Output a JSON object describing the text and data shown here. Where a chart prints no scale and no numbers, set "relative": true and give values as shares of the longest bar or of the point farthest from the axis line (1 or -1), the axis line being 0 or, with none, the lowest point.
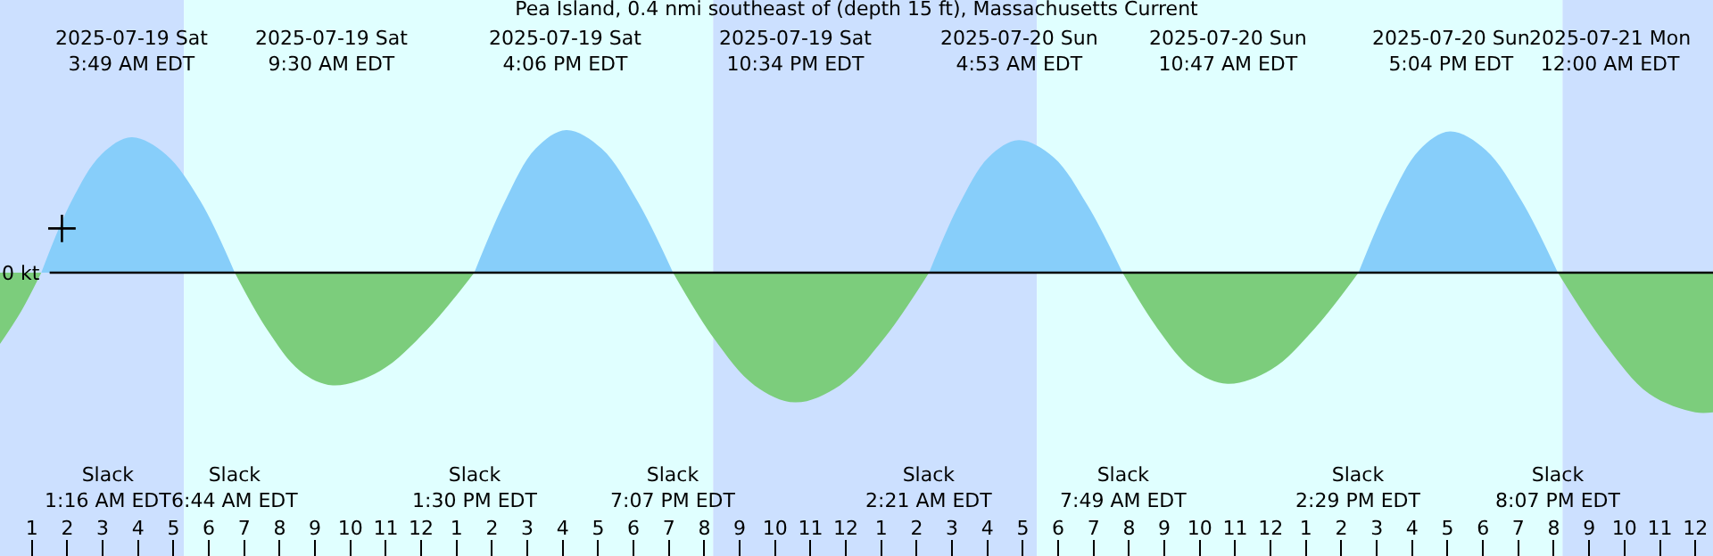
{
  "chart_data": {
    "type": "area",
    "title": "Pea Island, 0.4 nmi southeast of (depth 15 ft), Massachusetts Current",
    "relative": true,
    "grid": false,
    "tick_labels": "x",
    "xlim": [
      "2025-07-19T00:06",
      "2025-07-21T00:30"
    ],
    "xticks": [
      {
        "value": "2025-07-19T01:00",
        "label": "1"
      },
      {
        "value": "2025-07-19T02:00",
        "label": "2"
      },
      {
        "value": "2025-07-19T03:00",
        "label": "3"
      },
      {
        "value": "2025-07-19T04:00",
        "label": "4"
      },
      {
        "value": "2025-07-19T05:00",
        "label": "5"
      },
      {
        "value": "2025-07-19T06:00",
        "label": "6"
      },
      {
        "value": "2025-07-19T07:00",
        "label": "7"
      },
      {
        "value": "2025-07-19T08:00",
        "label": "8"
      },
      {
        "value": "2025-07-19T09:00",
        "label": "9"
      },
      {
        "value": "2025-07-19T10:00",
        "label": "10"
      },
      {
        "value": "2025-07-19T11:00",
        "label": "11"
      },
      {
        "value": "2025-07-19T12:00",
        "label": "12"
      },
      {
        "value": "2025-07-19T13:00",
        "label": "1"
      },
      {
        "value": "2025-07-19T14:00",
        "label": "2"
      },
      {
        "value": "2025-07-19T15:00",
        "label": "3"
      },
      {
        "value": "2025-07-19T16:00",
        "label": "4"
      },
      {
        "value": "2025-07-19T17:00",
        "label": "5"
      },
      {
        "value": "2025-07-19T18:00",
        "label": "6"
      },
      {
        "value": "2025-07-19T19:00",
        "label": "7"
      },
      {
        "value": "2025-07-19T20:00",
        "label": "8"
      },
      {
        "value": "2025-07-19T21:00",
        "label": "9"
      },
      {
        "value": "2025-07-19T22:00",
        "label": "10"
      },
      {
        "value": "2025-07-19T23:00",
        "label": "11"
      },
      {
        "value": "2025-07-20T00:00",
        "label": "12"
      },
      {
        "value": "2025-07-20T01:00",
        "label": "1"
      },
      {
        "value": "2025-07-20T02:00",
        "label": "2"
      },
      {
        "value": "2025-07-20T03:00",
        "label": "3"
      },
      {
        "value": "2025-07-20T04:00",
        "label": "4"
      },
      {
        "value": "2025-07-20T05:00",
        "label": "5"
      },
      {
        "value": "2025-07-20T06:00",
        "label": "6"
      },
      {
        "value": "2025-07-20T07:00",
        "label": "7"
      },
      {
        "value": "2025-07-20T08:00",
        "label": "8"
      },
      {
        "value": "2025-07-20T09:00",
        "label": "9"
      },
      {
        "value": "2025-07-20T10:00",
        "label": "10"
      },
      {
        "value": "2025-07-20T11:00",
        "label": "11"
      },
      {
        "value": "2025-07-20T12:00",
        "label": "12"
      },
      {
        "value": "2025-07-20T13:00",
        "label": "1"
      },
      {
        "value": "2025-07-20T14:00",
        "label": "2"
      },
      {
        "value": "2025-07-20T15:00",
        "label": "3"
      },
      {
        "value": "2025-07-20T16:00",
        "label": "4"
      },
      {
        "value": "2025-07-20T17:00",
        "label": "5"
      },
      {
        "value": "2025-07-20T18:00",
        "label": "6"
      },
      {
        "value": "2025-07-20T19:00",
        "label": "7"
      },
      {
        "value": "2025-07-20T20:00",
        "label": "8"
      },
      {
        "value": "2025-07-20T21:00",
        "label": "9"
      },
      {
        "value": "2025-07-20T22:00",
        "label": "10"
      },
      {
        "value": "2025-07-20T23:00",
        "label": "11"
      },
      {
        "value": "2025-07-21T00:00",
        "label": "12"
      }
    ],
    "x": [
      "2025-07-19T00:06",
      "2025-07-19T00:42",
      "2025-07-19T01:16",
      "2025-07-19T02:07",
      "2025-07-19T02:58",
      "2025-07-19T03:49",
      "2025-07-19T04:47",
      "2025-07-19T05:46",
      "2025-07-19T06:44",
      "2025-07-19T07:39",
      "2025-07-19T08:35",
      "2025-07-19T09:30",
      "2025-07-19T10:50",
      "2025-07-19T12:10",
      "2025-07-19T13:30",
      "2025-07-19T14:22",
      "2025-07-19T15:14",
      "2025-07-19T16:06",
      "2025-07-19T17:06",
      "2025-07-19T18:07",
      "2025-07-19T19:07",
      "2025-07-19T20:16",
      "2025-07-19T21:25",
      "2025-07-19T22:34",
      "2025-07-19T23:50",
      "2025-07-20T01:05",
      "2025-07-20T02:21",
      "2025-07-20T03:11",
      "2025-07-20T04:02",
      "2025-07-20T04:53",
      "2025-07-20T05:52",
      "2025-07-20T06:50",
      "2025-07-20T07:49",
      "2025-07-20T08:48",
      "2025-07-20T09:48",
      "2025-07-20T10:47",
      "2025-07-20T12:01",
      "2025-07-20T13:15",
      "2025-07-20T14:29",
      "2025-07-20T15:21",
      "2025-07-20T16:12",
      "2025-07-20T17:04",
      "2025-07-20T18:05",
      "2025-07-20T19:06",
      "2025-07-20T20:07",
      "2025-07-20T21:25",
      "2025-07-20T22:42",
      "2025-07-21T00:00",
      "2025-07-21T00:30"
    ],
    "series": [
      {
        "color": "#87cefa",
        "values": [
          null,
          null,
          0,
          0.5,
          0.83,
          0.95,
          0.83,
          0.5,
          0,
          null,
          null,
          null,
          null,
          null,
          0,
          0.5,
          0.87,
          1.0,
          0.87,
          0.5,
          0,
          null,
          null,
          null,
          null,
          null,
          0,
          0.47,
          0.81,
          0.93,
          0.81,
          0.47,
          0,
          null,
          null,
          null,
          null,
          null,
          0,
          0.5,
          0.86,
          0.99,
          0.86,
          0.5,
          0,
          null,
          null,
          null,
          null
        ]
      },
      {
        "color": "#7ccd7c",
        "values": [
          -0.5,
          -0.27,
          0,
          null,
          null,
          null,
          null,
          null,
          0,
          -0.4,
          -0.69,
          -0.79,
          -0.69,
          -0.4,
          0,
          null,
          null,
          null,
          null,
          null,
          0,
          -0.46,
          -0.79,
          -0.91,
          -0.79,
          -0.46,
          0,
          null,
          null,
          null,
          null,
          null,
          0,
          -0.39,
          -0.68,
          -0.78,
          -0.68,
          -0.39,
          0,
          null,
          null,
          null,
          null,
          null,
          0,
          -0.49,
          -0.85,
          -0.98,
          -0.98
        ]
      },
      {
        "type": "scatter",
        "marker": "cross",
        "color": "#000000",
        "x": [
          "2025-07-19T01:51"
        ],
        "values": [
          0.31
        ]
      }
    ],
    "ref_lines": [
      {
        "axis": "y",
        "value": 0,
        "label": "0 kt",
        "color": "#000000"
      }
    ],
    "bands": [
      {
        "axis": "x",
        "from": "2025-07-19T00:06",
        "to": "2025-07-19T05:18",
        "color": "#cce0ff"
      },
      {
        "axis": "x",
        "from": "2025-07-19T05:18",
        "to": "2025-07-19T20:15",
        "color": "#e0ffff"
      },
      {
        "axis": "x",
        "from": "2025-07-19T20:15",
        "to": "2025-07-20T05:24",
        "color": "#cce0ff"
      },
      {
        "axis": "x",
        "from": "2025-07-20T05:24",
        "to": "2025-07-20T20:15",
        "color": "#e0ffff"
      },
      {
        "axis": "x",
        "from": "2025-07-20T20:15",
        "to": "2025-07-21T00:30",
        "color": "#cce0ff"
      }
    ],
    "annotations": [
      "2025-07-19 Sat\n3:49 AM EDT",
      "2025-07-19 Sat\n9:30 AM EDT",
      "2025-07-19 Sat\n4:06 PM EDT",
      "2025-07-19 Sat\n10:34 PM EDT",
      "2025-07-20 Sun\n4:53 AM EDT",
      "2025-07-20 Sun\n10:47 AM EDT",
      "2025-07-20 Sun\n5:04 PM EDT",
      "2025-07-21 Mon\n12:00 AM EDT",
      "Slack\n1:16 AM EDT",
      "Slack\n6:44 AM EDT",
      "Slack\n1:30 PM EDT",
      "Slack\n7:07 PM EDT",
      "Slack\n2:21 AM EDT",
      "Slack\n7:49 AM EDT",
      "Slack\n2:29 PM EDT",
      "Slack\n8:07 PM EDT"
    ]
  }
}
